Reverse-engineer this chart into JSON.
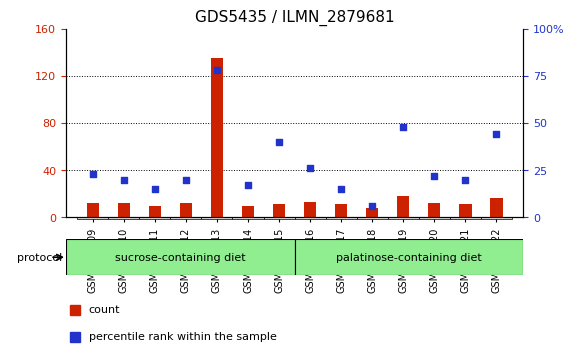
{
  "title": "GDS5435 / ILMN_2879681",
  "samples": [
    "GSM1322809",
    "GSM1322810",
    "GSM1322811",
    "GSM1322812",
    "GSM1322813",
    "GSM1322814",
    "GSM1322815",
    "GSM1322816",
    "GSM1322817",
    "GSM1322818",
    "GSM1322819",
    "GSM1322820",
    "GSM1322821",
    "GSM1322822"
  ],
  "counts": [
    12,
    12,
    10,
    12,
    135,
    10,
    11,
    13,
    11,
    8,
    18,
    12,
    11,
    16
  ],
  "percentiles": [
    23,
    20,
    15,
    20,
    78,
    17,
    40,
    26,
    15,
    6,
    48,
    22,
    20,
    44
  ],
  "groups": [
    {
      "label": "sucrose-containing diet",
      "start": 0,
      "end": 7,
      "color": "#90ee90"
    },
    {
      "label": "palatinose-containing diet",
      "start": 7,
      "end": 14,
      "color": "#90ee90"
    }
  ],
  "left_ylim": [
    0,
    160
  ],
  "right_ylim": [
    0,
    100
  ],
  "left_yticks": [
    0,
    40,
    80,
    120,
    160
  ],
  "right_yticks": [
    0,
    25,
    50,
    75,
    100
  ],
  "bar_color": "#cc2200",
  "dot_color": "#2233cc",
  "bg_color": "#d3d3d3",
  "grid_color": "#000000",
  "protocol_label": "protocol",
  "legend_count": "count",
  "legend_percentile": "percentile rank within the sample",
  "bar_width": 0.4
}
